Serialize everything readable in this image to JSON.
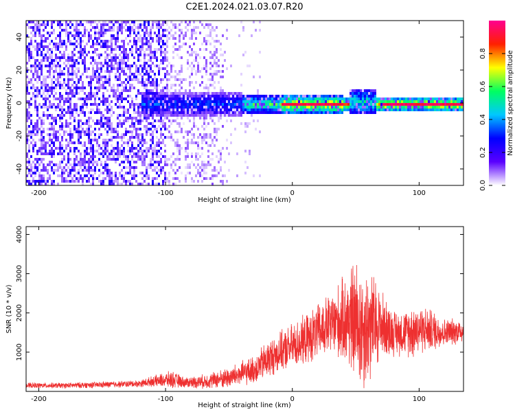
{
  "title": "C2E1.2024.021.03.07.R20",
  "chart_data": [
    {
      "type": "heatmap",
      "name": "spectrogram",
      "xlabel": "Height of straight line (km)",
      "ylabel": "Frequency (Hz)",
      "xlim": [
        -210,
        135
      ],
      "ylim": [
        -50,
        50
      ],
      "x_ticks": [
        -200,
        -100,
        0,
        100
      ],
      "y_ticks": [
        -40,
        -20,
        0,
        20,
        40
      ],
      "colorbar": {
        "label": "Normalized spectral amplitude",
        "range": [
          0,
          1
        ],
        "ticks": [
          "0.0",
          "0.2",
          "0.4",
          "0.6",
          "0.8"
        ],
        "stops": [
          "#ffffff",
          "#5a00ff",
          "#0000ff",
          "#00c8ff",
          "#00ff60",
          "#ffff00",
          "#ff2000",
          "#ff0090"
        ]
      },
      "features": {
        "carrier_frequency_hz": 0,
        "noise_region_km": [
          -210,
          -55
        ],
        "signal_start_km": -120,
        "bump_km": [
          45,
          65
        ]
      }
    },
    {
      "type": "line",
      "name": "snr",
      "xlabel": "Height of straight line (km)",
      "ylabel": "SNR (10 * v/v)",
      "xlim": [
        -210,
        135
      ],
      "ylim": [
        0,
        4200
      ],
      "x_ticks": [
        -200,
        -100,
        0,
        100
      ],
      "y_ticks": [
        1000,
        2000,
        3000,
        4000
      ],
      "color": "#ee3030",
      "envelope": {
        "x": [
          -210,
          -180,
          -150,
          -120,
          -110,
          -95,
          -85,
          -70,
          -50,
          -40,
          -30,
          -20,
          -10,
          0,
          10,
          20,
          30,
          40,
          45,
          50,
          55,
          60,
          65,
          70,
          75,
          80,
          90,
          95,
          100,
          110,
          120,
          135
        ],
        "mean": [
          150,
          150,
          170,
          200,
          260,
          300,
          230,
          250,
          350,
          450,
          550,
          800,
          1000,
          1150,
          1300,
          1500,
          1700,
          1800,
          1850,
          1750,
          1600,
          1650,
          1700,
          1700,
          1600,
          1500,
          1500,
          1550,
          1600,
          1550,
          1500,
          1550
        ],
        "spread": [
          80,
          80,
          90,
          100,
          150,
          250,
          150,
          200,
          300,
          350,
          400,
          550,
          550,
          650,
          700,
          800,
          900,
          1200,
          1500,
          1800,
          1800,
          1700,
          1400,
          1000,
          800,
          650,
          650,
          800,
          700,
          600,
          400,
          350
        ]
      }
    }
  ]
}
